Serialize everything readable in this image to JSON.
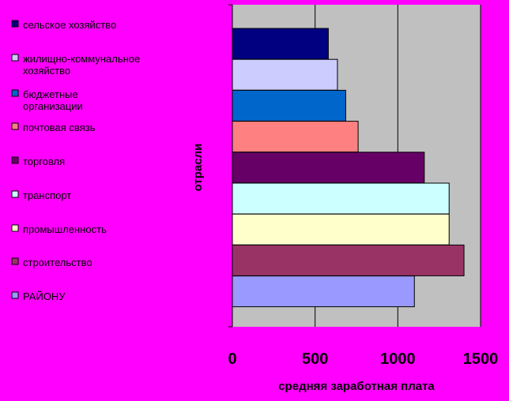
{
  "chart_data": {
    "type": "bar",
    "orientation": "horizontal",
    "categories": [
      "сельское хозяйство",
      "жилищно-коммунальное хозяйство",
      "бюджетные организации",
      "почтовая связь",
      "торговля",
      "транспорт",
      "промышленность",
      "строительство",
      "РАЙОНУ"
    ],
    "legend_labels": [
      [
        "сельское хозяйство"
      ],
      [
        "жилищно-коммунальное",
        "хозяйство"
      ],
      [
        "бюджетные",
        "организации"
      ],
      [
        "почтовая связь"
      ],
      [
        "торговля"
      ],
      [
        "транспорт"
      ],
      [
        "промышленность"
      ],
      [
        "строительство"
      ],
      [
        "РАЙОНУ"
      ]
    ],
    "values": [
      580,
      635,
      685,
      760,
      1160,
      1310,
      1310,
      1400,
      1100
    ],
    "colors": [
      "#000080",
      "#ccccff",
      "#0066cc",
      "#ff8080",
      "#660066",
      "#ccffff",
      "#ffffcc",
      "#993366",
      "#9999ff"
    ],
    "xlabel": "средняя заработная плата",
    "ylabel": "отрасли",
    "xlim": [
      0,
      1500
    ],
    "xticks": [
      0,
      500,
      1000,
      1500
    ],
    "grid": true,
    "legend_position": "left",
    "plot_background": "#c0c0c0",
    "page_background": "#ff00ff"
  }
}
